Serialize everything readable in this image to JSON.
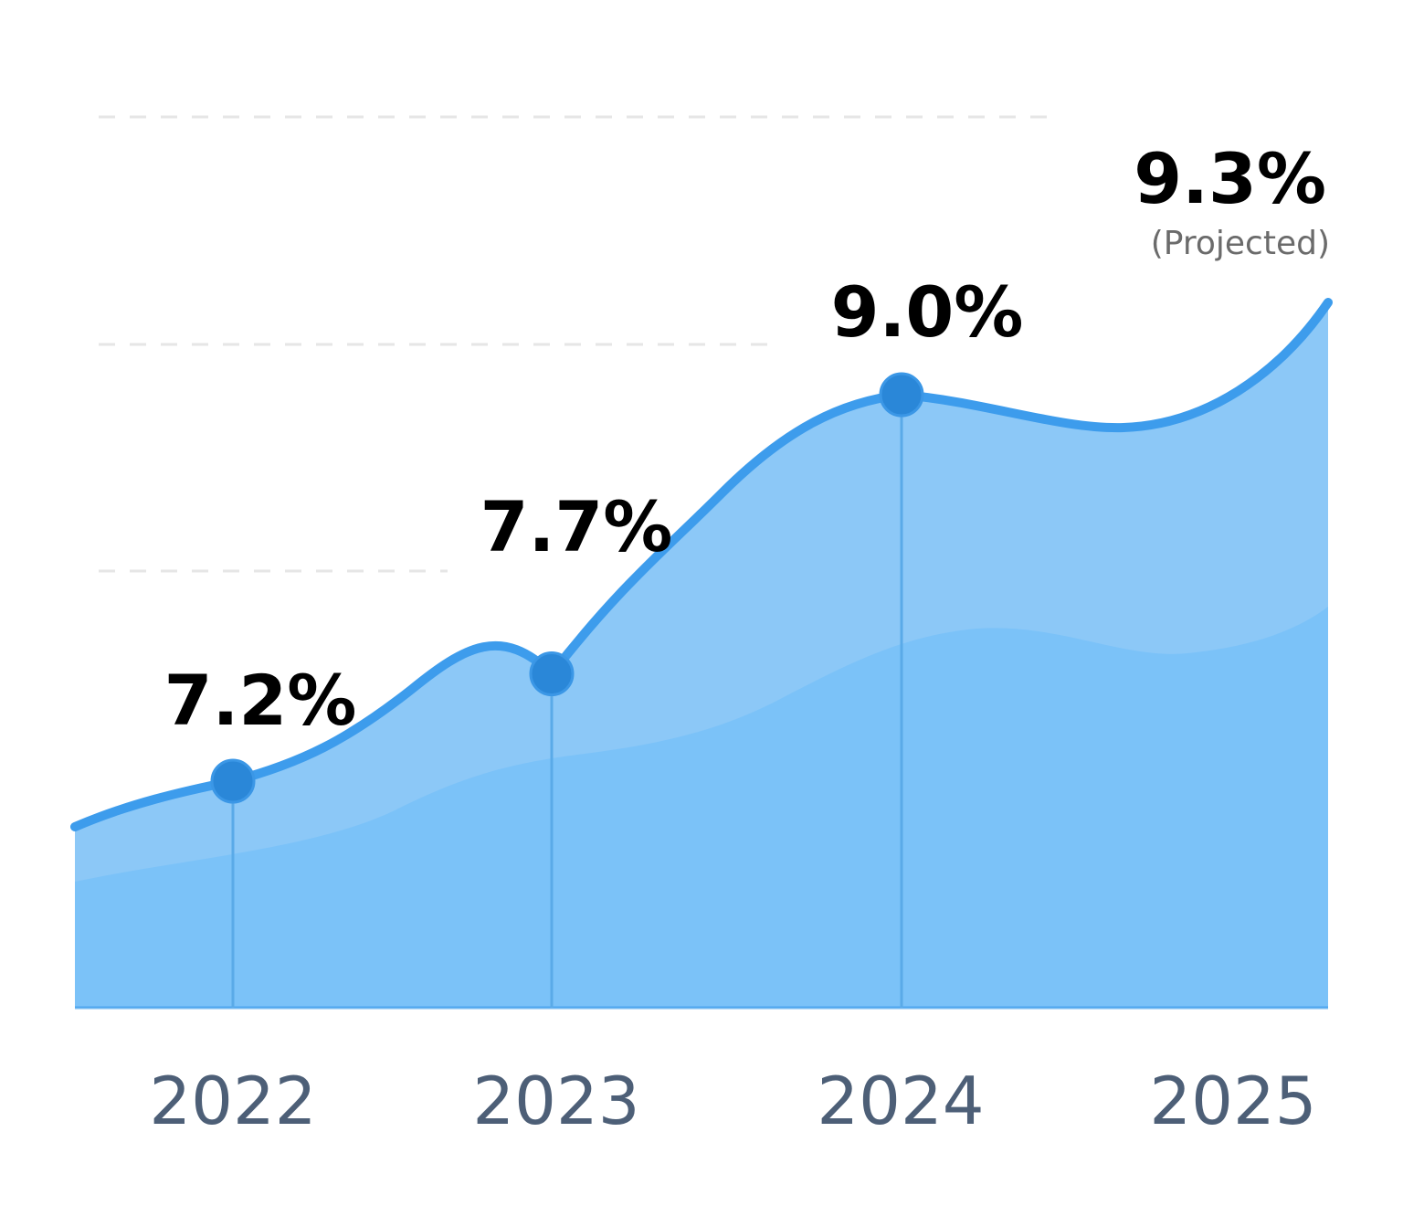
{
  "chart_data": {
    "type": "area",
    "title": "",
    "xlabel": "",
    "ylabel": "",
    "categories": [
      "2022",
      "2023",
      "2024",
      "2025"
    ],
    "values": [
      7.2,
      7.7,
      9.0,
      9.3
    ],
    "value_labels": [
      "7.2%",
      "7.7%",
      "9.0%",
      "9.3%"
    ],
    "annotations": [
      {
        "category": "2025",
        "text": "(Projected)"
      }
    ],
    "grid": true,
    "legend": "none",
    "colors": {
      "line": "#3d9cec",
      "fill_upper": "#8cc8f7",
      "fill_lower": "#7bc2f8",
      "marker": "#2a87d8",
      "grid": "#e6e6e6"
    }
  }
}
